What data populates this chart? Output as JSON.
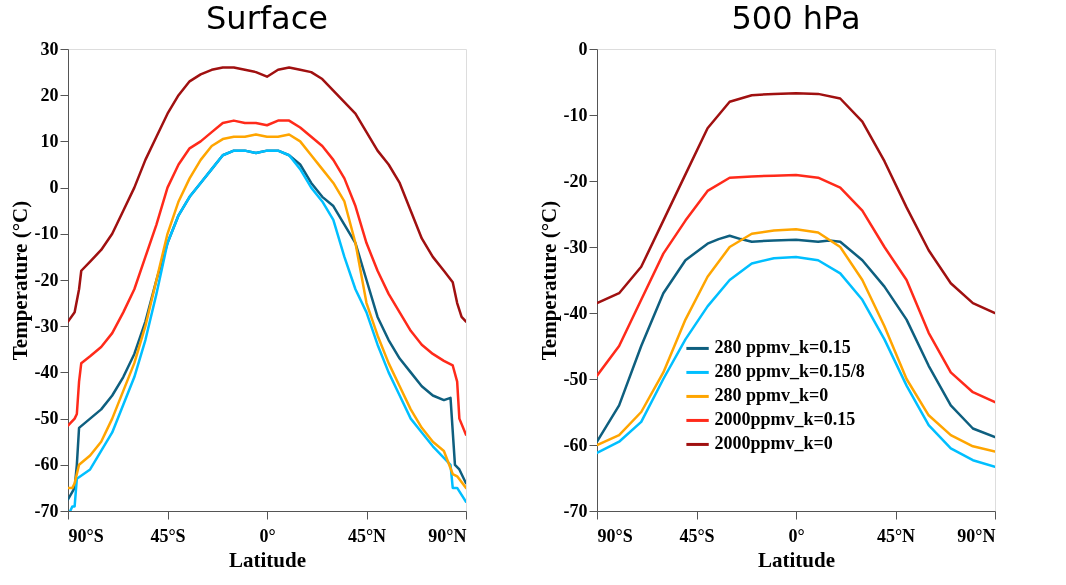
{
  "chart_data": [
    {
      "type": "line",
      "title": "Surface",
      "xlabel": "Latitude",
      "ylabel": "Temperature (°C)",
      "grid": false,
      "xlim": [
        -90,
        90
      ],
      "xticks": [
        {
          "value": -90,
          "label": "90°S"
        },
        {
          "value": -45,
          "label": "45°S"
        },
        {
          "value": 0,
          "label": "0°"
        },
        {
          "value": 45,
          "label": "45°N"
        },
        {
          "value": 90,
          "label": "90°N"
        }
      ],
      "ylim": [
        -70,
        30
      ],
      "yticks": [
        -70,
        -60,
        -50,
        -40,
        -30,
        -20,
        -10,
        0,
        10,
        20,
        30
      ],
      "series": [
        {
          "color": "#0e5f7f",
          "x": [
            -90,
            -87,
            -86,
            -85,
            -80,
            -75,
            -70,
            -65,
            -60,
            -55,
            -50,
            -45,
            -40,
            -35,
            -30,
            -25,
            -20,
            -15,
            -10,
            -5,
            0,
            5,
            10,
            15,
            20,
            25,
            30,
            35,
            40,
            45,
            50,
            55,
            60,
            65,
            70,
            75,
            80,
            83,
            85,
            87,
            90
          ],
          "values": [
            -67.5,
            -65,
            -60,
            -52,
            -50,
            -48,
            -45,
            -41,
            -36,
            -29,
            -20,
            -12,
            -6,
            -2,
            1,
            4,
            7,
            8,
            8,
            7.5,
            8,
            8,
            7,
            5,
            1,
            -2,
            -4,
            -8,
            -12,
            -20,
            -28,
            -33,
            -37,
            -40,
            -43,
            -45,
            -46,
            -45.5,
            -60,
            -61,
            -64
          ]
        },
        {
          "color": "#00bfff",
          "x": [
            -89,
            -88,
            -87,
            -86,
            -80,
            -75,
            -70,
            -65,
            -60,
            -55,
            -50,
            -45,
            -40,
            -35,
            -30,
            -25,
            -20,
            -15,
            -10,
            -5,
            0,
            5,
            10,
            15,
            20,
            25,
            30,
            35,
            40,
            45,
            50,
            55,
            60,
            65,
            70,
            75,
            80,
            83,
            84,
            86,
            90
          ],
          "values": [
            -70,
            -69,
            -69,
            -63,
            -61,
            -57,
            -53,
            -47,
            -41,
            -33,
            -23,
            -12,
            -6,
            -2,
            1,
            4,
            7,
            8,
            8,
            7.5,
            8,
            8,
            7,
            4,
            0,
            -3,
            -7,
            -15,
            -22,
            -27,
            -34,
            -40,
            -45,
            -50,
            -53,
            -56,
            -58.5,
            -60,
            -65,
            -65,
            -68
          ]
        },
        {
          "color": "#ffa500",
          "x": [
            -90,
            -88,
            -87,
            -85,
            -80,
            -75,
            -70,
            -65,
            -60,
            -55,
            -50,
            -45,
            -40,
            -35,
            -30,
            -25,
            -20,
            -15,
            -10,
            -5,
            0,
            5,
            10,
            15,
            20,
            25,
            30,
            35,
            40,
            45,
            50,
            55,
            60,
            65,
            70,
            75,
            80,
            84,
            86,
            90
          ],
          "values": [
            -65,
            -65,
            -64,
            -60,
            -58,
            -55,
            -50,
            -44,
            -38,
            -30,
            -20,
            -10,
            -3,
            2,
            6,
            9,
            10.5,
            11,
            11,
            11.5,
            11,
            11,
            11.5,
            10,
            7,
            4,
            1,
            -3,
            -12,
            -25,
            -32,
            -38,
            -43,
            -48,
            -52,
            -55,
            -57,
            -62,
            -62.5,
            -65
          ]
        },
        {
          "color": "#ff2a1a",
          "x": [
            -90,
            -87,
            -86,
            -85,
            -84,
            -80,
            -75,
            -70,
            -65,
            -60,
            -55,
            -50,
            -45,
            -40,
            -35,
            -30,
            -25,
            -20,
            -15,
            -10,
            -5,
            0,
            5,
            10,
            15,
            20,
            25,
            30,
            35,
            40,
            45,
            50,
            55,
            60,
            65,
            70,
            75,
            80,
            84,
            86,
            87,
            90
          ],
          "values": [
            -51.5,
            -50,
            -49,
            -42,
            -38,
            -36.5,
            -34.5,
            -31.5,
            -27,
            -22,
            -15,
            -8,
            0,
            5,
            8.5,
            10,
            12,
            14,
            14.5,
            14,
            14,
            13.5,
            14.5,
            14.5,
            13,
            11,
            9,
            6,
            2,
            -4,
            -12,
            -18,
            -23,
            -27,
            -31,
            -34,
            -36,
            -37.5,
            -38.5,
            -42,
            -50,
            -53.5
          ]
        },
        {
          "color": "#a01010",
          "x": [
            -90,
            -87,
            -85,
            -84,
            -80,
            -75,
            -70,
            -65,
            -60,
            -55,
            -50,
            -45,
            -40,
            -35,
            -30,
            -25,
            -20,
            -15,
            -10,
            -5,
            0,
            5,
            10,
            15,
            20,
            25,
            30,
            35,
            40,
            45,
            50,
            55,
            60,
            65,
            70,
            75,
            80,
            84,
            86,
            88,
            90
          ],
          "values": [
            -29,
            -27,
            -22,
            -18,
            -16,
            -13.5,
            -10,
            -5,
            0,
            6,
            11,
            16,
            20,
            23,
            24.5,
            25.5,
            26,
            26,
            25.5,
            25,
            24,
            25.5,
            26,
            25.5,
            25,
            23.5,
            21,
            18.5,
            16,
            12,
            8,
            5,
            1,
            -5,
            -11,
            -15,
            -18,
            -20.5,
            -25,
            -28,
            -29
          ]
        }
      ]
    },
    {
      "type": "line",
      "title": "500 hPa",
      "xlabel": "Latitude",
      "ylabel": "Temperature (°C)",
      "legend": "bottom",
      "grid": false,
      "xlim": [
        -90,
        90
      ],
      "xticks": [
        {
          "value": -90,
          "label": "90°S"
        },
        {
          "value": -45,
          "label": "45°S"
        },
        {
          "value": 0,
          "label": "0°"
        },
        {
          "value": 45,
          "label": "45°N"
        },
        {
          "value": 90,
          "label": "90°N"
        }
      ],
      "ylim": [
        -70,
        0
      ],
      "yticks": [
        -70,
        -60,
        -50,
        -40,
        -30,
        -20,
        -10,
        0
      ],
      "series": [
        {
          "name": "280 ppmv_k=0.15",
          "color": "#0e5f7f",
          "x": [
            -90,
            -80,
            -70,
            -60,
            -50,
            -40,
            -35,
            -30,
            -25,
            -20,
            -10,
            0,
            10,
            15,
            20,
            30,
            40,
            50,
            60,
            70,
            80,
            90
          ],
          "values": [
            -59.5,
            -54,
            -45,
            -37,
            -32,
            -29.5,
            -28.8,
            -28.3,
            -28.8,
            -29.2,
            -29,
            -28.9,
            -29.2,
            -29,
            -29.2,
            -32,
            -36,
            -41,
            -48,
            -54,
            -57.5,
            -58.8
          ]
        },
        {
          "name": "280 ppmv_k=0.15/8",
          "color": "#00bfff",
          "x": [
            -90,
            -80,
            -70,
            -60,
            -50,
            -40,
            -30,
            -20,
            -10,
            0,
            10,
            20,
            30,
            40,
            50,
            60,
            70,
            80,
            90
          ],
          "values": [
            -61.2,
            -59.5,
            -56.5,
            -50,
            -44,
            -39,
            -35,
            -32.5,
            -31.7,
            -31.5,
            -32,
            -34,
            -38,
            -44,
            -51,
            -57,
            -60.5,
            -62.3,
            -63.3
          ]
        },
        {
          "name": "280 ppmv_k=0",
          "color": "#ffa500",
          "x": [
            -90,
            -80,
            -70,
            -60,
            -50,
            -40,
            -30,
            -20,
            -10,
            0,
            10,
            20,
            30,
            40,
            50,
            60,
            70,
            80,
            90
          ],
          "values": [
            -60,
            -58.5,
            -55,
            -49,
            -41,
            -34.5,
            -30,
            -28,
            -27.5,
            -27.3,
            -27.8,
            -30,
            -35,
            -42,
            -50,
            -55.5,
            -58.5,
            -60.2,
            -61
          ]
        },
        {
          "name": "2000ppmv_k=0.15",
          "color": "#ff2a1a",
          "x": [
            -90,
            -80,
            -70,
            -60,
            -50,
            -40,
            -30,
            -20,
            -10,
            0,
            10,
            20,
            30,
            40,
            50,
            60,
            70,
            80,
            90
          ],
          "values": [
            -49.5,
            -45,
            -38,
            -31,
            -26,
            -21.5,
            -19.5,
            -19.3,
            -19.2,
            -19.1,
            -19.5,
            -21,
            -24.5,
            -30,
            -35,
            -43,
            -49,
            -52,
            -53.5
          ]
        },
        {
          "name": "2000ppmv_k=0",
          "color": "#a01010",
          "x": [
            -90,
            -80,
            -70,
            -60,
            -50,
            -40,
            -30,
            -20,
            -10,
            0,
            10,
            20,
            30,
            40,
            50,
            60,
            70,
            80,
            90
          ],
          "values": [
            -38.5,
            -37,
            -33,
            -26,
            -19,
            -12,
            -8,
            -7,
            -6.8,
            -6.7,
            -6.8,
            -7.5,
            -11,
            -17,
            -24,
            -30.5,
            -35.5,
            -38.5,
            -40
          ]
        }
      ]
    }
  ]
}
